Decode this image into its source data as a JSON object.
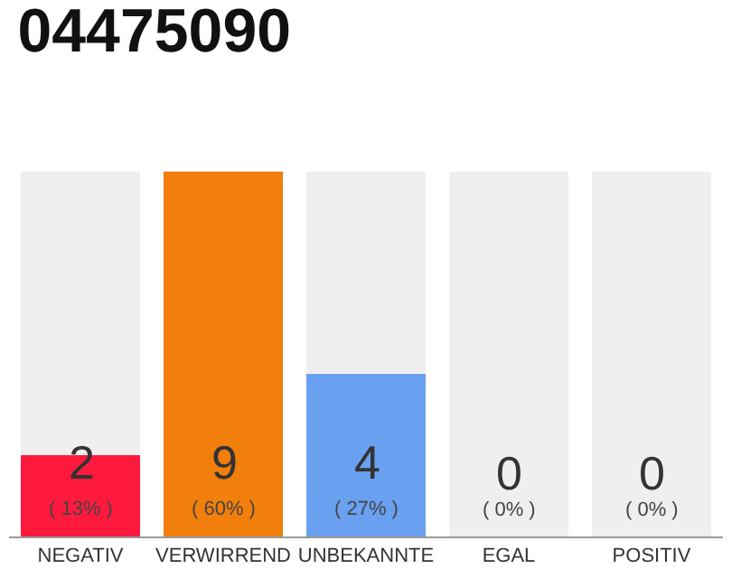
{
  "chart_data": {
    "type": "bar",
    "title": "04475090",
    "stacked": true,
    "categories": [
      "NEGATIV",
      "VERWIRREND",
      "UNBEKANNTE",
      "EGAL",
      "POSITIV"
    ],
    "series": [
      {
        "values": [
          2,
          9,
          4,
          0,
          0
        ],
        "colors": [
          "#ff1a3d",
          "#f27e0c",
          "#6aa0f0",
          "#efefef",
          "#efefef"
        ],
        "value_labels": [
          "2",
          "9",
          "4",
          null,
          null
        ]
      },
      {
        "values": [
          7,
          0,
          5,
          9,
          9
        ],
        "color": "#efefef"
      }
    ],
    "ylim": [
      0,
      9
    ],
    "tick_labels": "x",
    "legend": false,
    "annotations": [
      {
        "text": "( 13% )",
        "x": "NEGATIV",
        "y": 0
      },
      {
        "text": "( 60% )",
        "x": "VERWIRREND",
        "y": 0
      },
      {
        "text": "( 27% )",
        "x": "UNBEKANNTE",
        "y": 0
      },
      {
        "text": "0\n( 0% )",
        "x": "EGAL",
        "y": 0
      },
      {
        "text": "0\n( 0% )",
        "x": "POSITIV",
        "y": 0
      }
    ]
  }
}
